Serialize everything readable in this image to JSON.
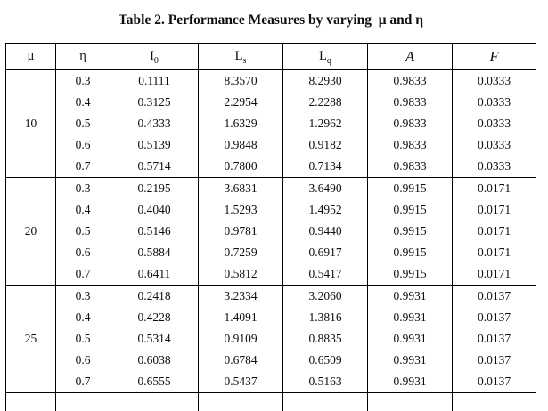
{
  "title": "Table 2. Performance Measures by varying  μ and η",
  "table": {
    "columns": [
      {
        "base": "μ",
        "sub": ""
      },
      {
        "base": "η",
        "sub": ""
      },
      {
        "base": "I",
        "sub": "0"
      },
      {
        "base": "L",
        "sub": "s"
      },
      {
        "base": "L",
        "sub": "q"
      },
      {
        "base": "A",
        "sub": "",
        "style": "script"
      },
      {
        "base": "F",
        "sub": "",
        "style": "script"
      }
    ],
    "blocks": [
      {
        "mu": "10",
        "rows": [
          {
            "eta": "0.3",
            "I0": "0.1111",
            "Ls": "8.3570",
            "Lq": "8.2930",
            "A": "0.9833",
            "F": "0.0333"
          },
          {
            "eta": "0.4",
            "I0": "0.3125",
            "Ls": "2.2954",
            "Lq": "2.2288",
            "A": "0.9833",
            "F": "0.0333"
          },
          {
            "eta": "0.5",
            "I0": "0.4333",
            "Ls": "1.6329",
            "Lq": "1.2962",
            "A": "0.9833",
            "F": "0.0333"
          },
          {
            "eta": "0.6",
            "I0": "0.5139",
            "Ls": "0.9848",
            "Lq": "0.9182",
            "A": "0.9833",
            "F": "0.0333"
          },
          {
            "eta": "0.7",
            "I0": "0.5714",
            "Ls": "0.7800",
            "Lq": "0.7134",
            "A": "0.9833",
            "F": "0.0333"
          }
        ]
      },
      {
        "mu": "20",
        "rows": [
          {
            "eta": "0.3",
            "I0": "0.2195",
            "Ls": "3.6831",
            "Lq": "3.6490",
            "A": "0.9915",
            "F": "0.0171"
          },
          {
            "eta": "0.4",
            "I0": "0.4040",
            "Ls": "1.5293",
            "Lq": "1.4952",
            "A": "0.9915",
            "F": "0.0171"
          },
          {
            "eta": "0.5",
            "I0": "0.5146",
            "Ls": "0.9781",
            "Lq": "0.9440",
            "A": "0.9915",
            "F": "0.0171"
          },
          {
            "eta": "0.6",
            "I0": "0.5884",
            "Ls": "0.7259",
            "Lq": "0.6917",
            "A": "0.9915",
            "F": "0.0171"
          },
          {
            "eta": "0.7",
            "I0": "0.6411",
            "Ls": "0.5812",
            "Lq": "0.5417",
            "A": "0.9915",
            "F": "0.0171"
          }
        ]
      },
      {
        "mu": "25",
        "rows": [
          {
            "eta": "0.3",
            "I0": "0.2418",
            "Ls": "3.2334",
            "Lq": "3.2060",
            "A": "0.9931",
            "F": "0.0137"
          },
          {
            "eta": "0.4",
            "I0": "0.4228",
            "Ls": "1.4091",
            "Lq": "1.3816",
            "A": "0.9931",
            "F": "0.0137"
          },
          {
            "eta": "0.5",
            "I0": "0.5314",
            "Ls": "0.9109",
            "Lq": "0.8835",
            "A": "0.9931",
            "F": "0.0137"
          },
          {
            "eta": "0.6",
            "I0": "0.6038",
            "Ls": "0.6784",
            "Lq": "0.6509",
            "A": "0.9931",
            "F": "0.0137"
          },
          {
            "eta": "0.7",
            "I0": "0.6555",
            "Ls": "0.5437",
            "Lq": "0.5163",
            "A": "0.9931",
            "F": "0.0137"
          }
        ]
      }
    ]
  }
}
